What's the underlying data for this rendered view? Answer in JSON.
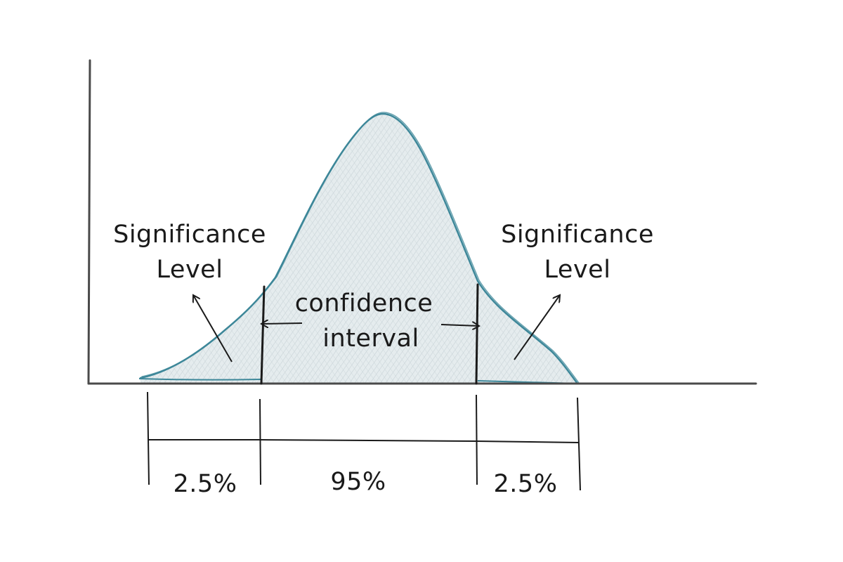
{
  "labels": {
    "left_significance_line1": "Significance",
    "left_significance_line2": "Level",
    "right_significance_line1": "Significance",
    "right_significance_line2": "Level",
    "confidence_line1": "confidence",
    "confidence_line2": "interval",
    "left_tail_percent": "2.5%",
    "center_percent": "95%",
    "right_tail_percent": "2.5%"
  },
  "colors": {
    "curve_stroke": "#3d8799",
    "curve_fill": "#dde6e9",
    "hatch": "#c4cfd3",
    "axis": "#4a4a4a",
    "ink": "#1a1a1a"
  }
}
